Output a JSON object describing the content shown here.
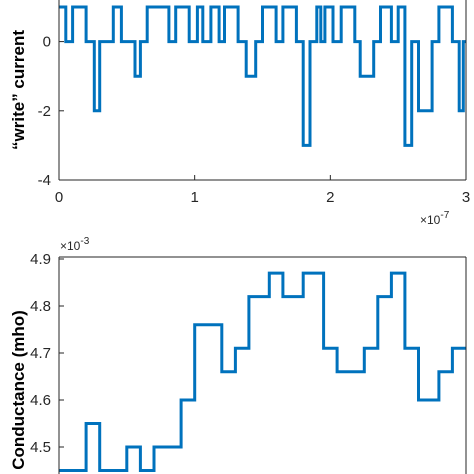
{
  "chart_data": [
    {
      "type": "line",
      "ylabel": "“write” current",
      "xlim": [
        0,
        3e-07
      ],
      "ylim": [
        -4,
        1
      ],
      "x_exponent_label": "×10",
      "x_exponent_power": "-7",
      "xticks": [
        {
          "value": 0,
          "label": "0"
        },
        {
          "value": 1e-07,
          "label": "1"
        },
        {
          "value": 2e-07,
          "label": "2"
        },
        {
          "value": 3e-07,
          "label": "3"
        }
      ],
      "yticks": [
        {
          "value": 0,
          "label": "0"
        },
        {
          "value": -2,
          "label": "-2"
        },
        {
          "value": -4,
          "label": "-4"
        }
      ],
      "series": [
        {
          "color": "#0072BD",
          "x": [
            0,
            5e-09,
            5e-09,
            1e-08,
            1e-08,
            2e-08,
            2e-08,
            2.6e-08,
            2.6e-08,
            3e-08,
            3e-08,
            4e-08,
            4e-08,
            4.6e-08,
            4.6e-08,
            5.6e-08,
            5.6e-08,
            6e-08,
            6e-08,
            6.5e-08,
            6.5e-08,
            8.1e-08,
            8.1e-08,
            8.6e-08,
            8.6e-08,
            9.6e-08,
            9.6e-08,
            1.02e-07,
            1.02e-07,
            1.06e-07,
            1.06e-07,
            1.12e-07,
            1.12e-07,
            1.18e-07,
            1.18e-07,
            1.22e-07,
            1.22e-07,
            1.32e-07,
            1.32e-07,
            1.38e-07,
            1.38e-07,
            1.45e-07,
            1.45e-07,
            1.5e-07,
            1.5e-07,
            1.6e-07,
            1.6e-07,
            1.65e-07,
            1.65e-07,
            1.75e-07,
            1.75e-07,
            1.8e-07,
            1.8e-07,
            1.85e-07,
            1.85e-07,
            1.9e-07,
            1.9e-07,
            1.93e-07,
            1.93e-07,
            1.96e-07,
            1.96e-07,
            2.02e-07,
            2.02e-07,
            2.08e-07,
            2.08e-07,
            2.18e-07,
            2.18e-07,
            2.22e-07,
            2.22e-07,
            2.32e-07,
            2.32e-07,
            2.37e-07,
            2.37e-07,
            2.45e-07,
            2.45e-07,
            2.5e-07,
            2.5e-07,
            2.55e-07,
            2.55e-07,
            2.6e-07,
            2.6e-07,
            2.65e-07,
            2.65e-07,
            2.75e-07,
            2.75e-07,
            2.8e-07,
            2.8e-07,
            2.9e-07,
            2.9e-07,
            2.95e-07,
            2.95e-07,
            2.98e-07,
            2.98e-07,
            3e-07
          ],
          "y": [
            1,
            1,
            0,
            0,
            1,
            1,
            0,
            0,
            -2,
            -2,
            0,
            0,
            1,
            1,
            0,
            0,
            -1,
            -1,
            0,
            0,
            1,
            1,
            0,
            0,
            1,
            1,
            0,
            0,
            1,
            1,
            0,
            0,
            1,
            1,
            0,
            0,
            1,
            1,
            0,
            0,
            -1,
            -1,
            0,
            0,
            1,
            1,
            0,
            0,
            1,
            1,
            0,
            0,
            -3,
            -3,
            0,
            0,
            1,
            1,
            0,
            0,
            1,
            1,
            0,
            0,
            1,
            1,
            0,
            0,
            -1,
            -1,
            0,
            0,
            1,
            1,
            0,
            0,
            1,
            1,
            -3,
            -3,
            0,
            0,
            -2,
            -2,
            0,
            0,
            1,
            1,
            0,
            0,
            -2,
            -2,
            0,
            0
          ]
        }
      ]
    },
    {
      "type": "line",
      "ylabel": "Conductance (mho)",
      "xlim": [
        0,
        3e-07
      ],
      "ylim": [
        0.00442,
        0.0049
      ],
      "y_exponent_label": "×10",
      "y_exponent_power": "-3",
      "yticks": [
        {
          "value": 0.0045,
          "label": "4.5"
        },
        {
          "value": 0.0046,
          "label": "4.6"
        },
        {
          "value": 0.0047,
          "label": "4.7"
        },
        {
          "value": 0.0048,
          "label": "4.8"
        },
        {
          "value": 0.0049,
          "label": "4.9"
        }
      ],
      "series": [
        {
          "color": "#0072BD",
          "x": [
            0.0,
            2e-08,
            2e-08,
            3e-08,
            3e-08,
            5e-08,
            5e-08,
            6e-08,
            6e-08,
            7e-08,
            7e-08,
            9e-08,
            9e-08,
            1e-07,
            1e-07,
            1.2e-07,
            1.2e-07,
            1.3e-07,
            1.3e-07,
            1.4e-07,
            1.4e-07,
            1.55e-07,
            1.55e-07,
            1.65e-07,
            1.65e-07,
            1.8e-07,
            1.8e-07,
            1.95e-07,
            1.95e-07,
            2.05e-07,
            2.05e-07,
            2.25e-07,
            2.25e-07,
            2.35e-07,
            2.35e-07,
            2.45e-07,
            2.45e-07,
            2.55e-07,
            2.55e-07,
            2.65e-07,
            2.65e-07,
            2.8e-07,
            2.8e-07,
            2.9e-07,
            2.9e-07,
            3e-07
          ],
          "y": [
            0.00445,
            0.00445,
            0.00455,
            0.00455,
            0.00445,
            0.00445,
            0.0045,
            0.0045,
            0.00445,
            0.00445,
            0.0045,
            0.0045,
            0.0046,
            0.0046,
            0.00476,
            0.00476,
            0.00466,
            0.00466,
            0.00471,
            0.00471,
            0.00482,
            0.00482,
            0.00487,
            0.00487,
            0.00482,
            0.00482,
            0.00487,
            0.00487,
            0.00471,
            0.00471,
            0.00466,
            0.00466,
            0.00471,
            0.00471,
            0.00482,
            0.00482,
            0.00487,
            0.00487,
            0.00471,
            0.00471,
            0.0046,
            0.0046,
            0.00466,
            0.00466,
            0.00471,
            0.00471
          ]
        }
      ]
    }
  ]
}
